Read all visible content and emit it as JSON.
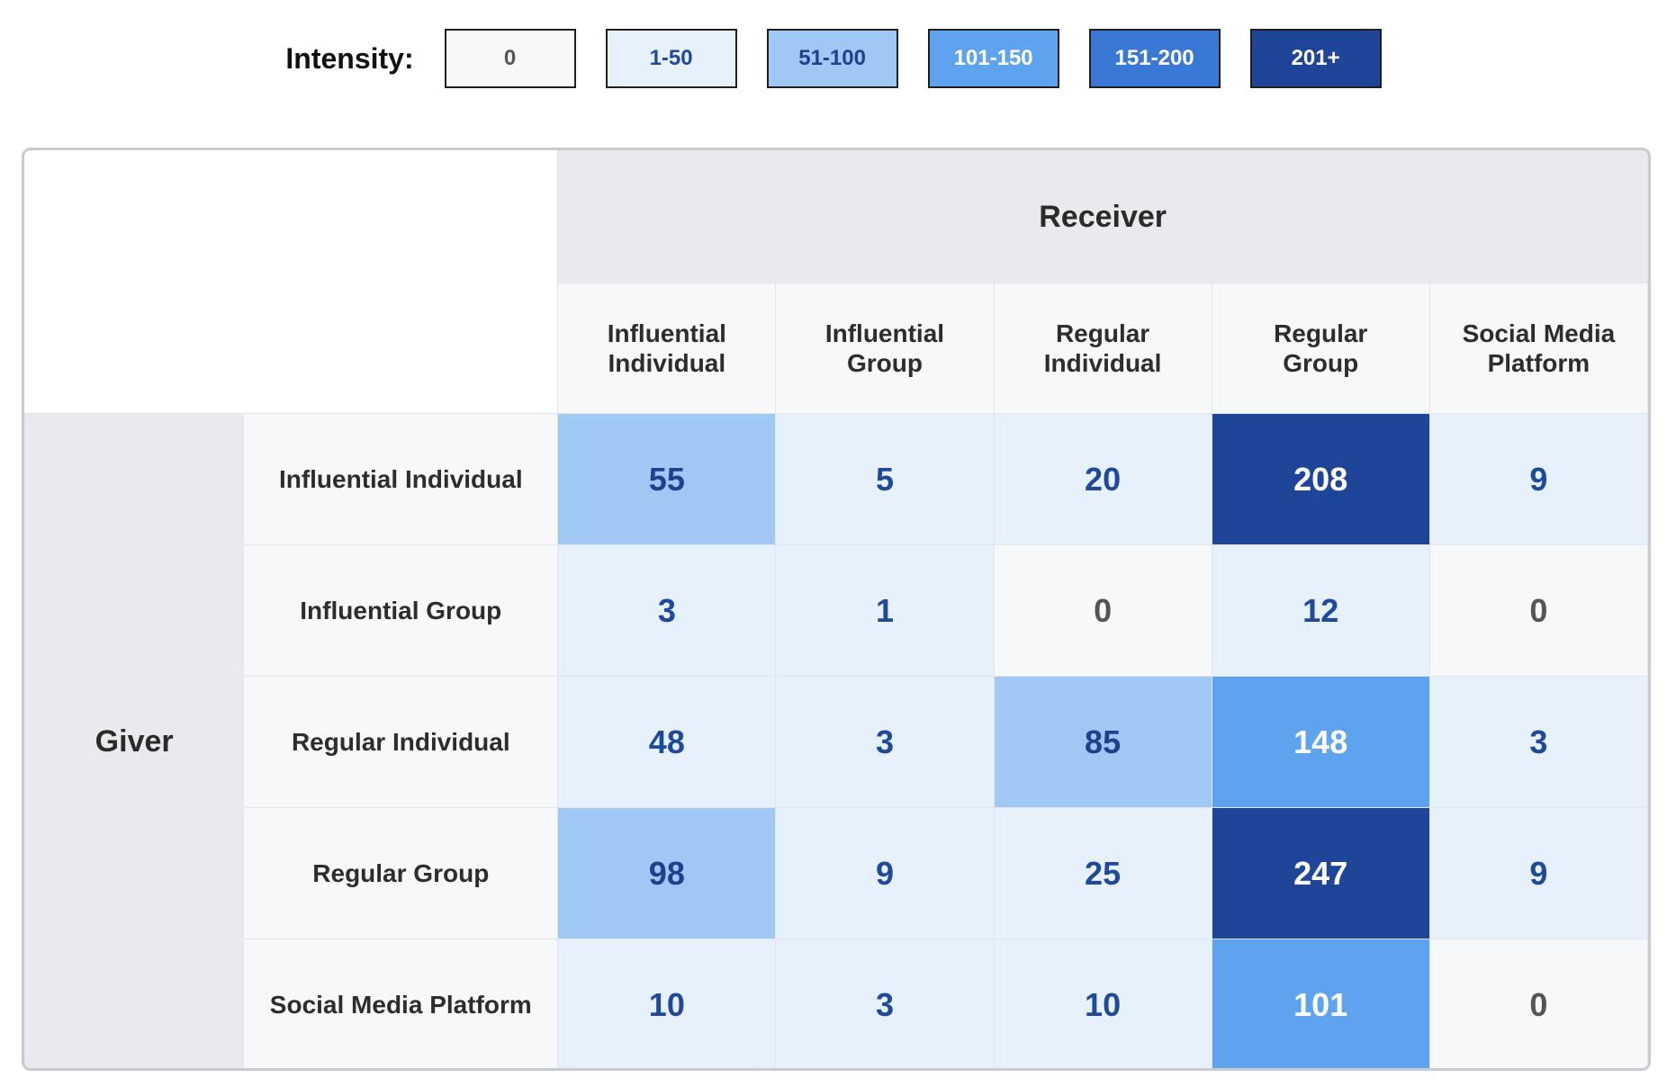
{
  "legend": {
    "title": "Intensity:",
    "items": [
      {
        "label": "0",
        "bg": "#f7f8fa",
        "fg": "#555555"
      },
      {
        "label": "1-50",
        "bg": "#e6f1fb",
        "fg": "#1f4a9a"
      },
      {
        "label": "51-100",
        "bg": "#9fc8f5",
        "fg": "#1f3f8f"
      },
      {
        "label": "101-150",
        "bg": "#5ea3ee",
        "fg": "#ffffff"
      },
      {
        "label": "151-200",
        "bg": "#3a78d6",
        "fg": "#ffffff"
      },
      {
        "label": "201+",
        "bg": "#1f4599",
        "fg": "#ffffff"
      }
    ]
  },
  "chart_data": {
    "type": "heatmap",
    "column_axis_label": "Receiver",
    "row_axis_label": "Giver",
    "columns": [
      [
        "Influential",
        "Individual"
      ],
      [
        "Influential",
        "Group"
      ],
      [
        "Regular",
        "Individual"
      ],
      [
        "Regular",
        "Group"
      ],
      [
        "Social Media",
        "Platform"
      ]
    ],
    "rows": [
      "Influential Individual",
      "Influential Group",
      "Regular Individual",
      "Regular Group",
      "Social Media Platform"
    ],
    "values": [
      [
        55,
        5,
        20,
        208,
        9
      ],
      [
        3,
        1,
        0,
        12,
        0
      ],
      [
        48,
        3,
        85,
        148,
        3
      ],
      [
        98,
        9,
        25,
        247,
        9
      ],
      [
        10,
        3,
        10,
        101,
        0
      ]
    ],
    "bins": [
      {
        "min": 0,
        "max": 0,
        "label": "0"
      },
      {
        "min": 1,
        "max": 50,
        "label": "1-50"
      },
      {
        "min": 51,
        "max": 100,
        "label": "51-100"
      },
      {
        "min": 101,
        "max": 150,
        "label": "101-150"
      },
      {
        "min": 151,
        "max": 200,
        "label": "151-200"
      },
      {
        "min": 201,
        "max": null,
        "label": "201+"
      }
    ],
    "legend_position": "top-center"
  }
}
